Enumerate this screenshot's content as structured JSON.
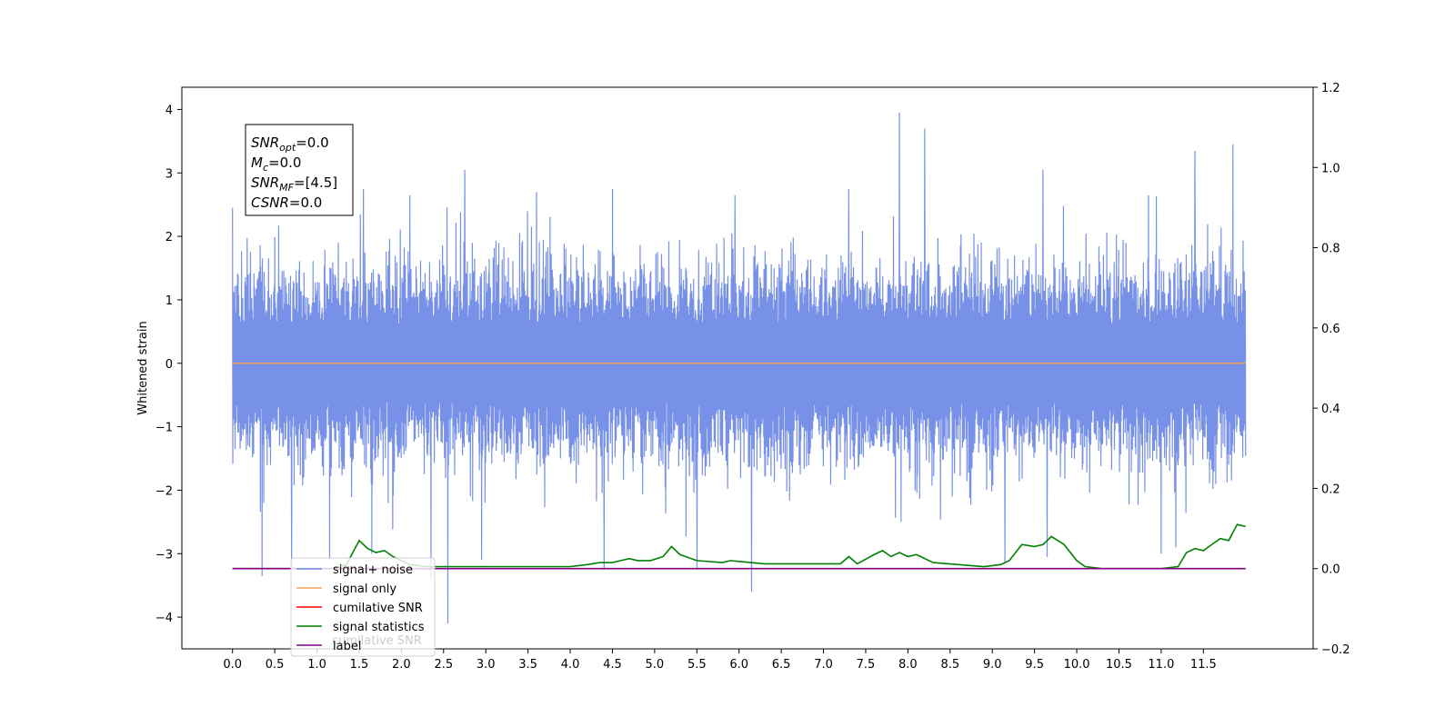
{
  "chart_data": {
    "type": "line",
    "ylabel": "Whitened strain",
    "xlim": [
      -0.6,
      12.8
    ],
    "ylim": [
      -4.5,
      4.35
    ],
    "y2lim": [
      -0.2,
      1.2
    ],
    "xticks": [
      0.0,
      0.5,
      1.0,
      1.5,
      2.0,
      2.5,
      3.0,
      3.5,
      4.0,
      4.5,
      5.0,
      5.5,
      6.0,
      6.5,
      7.0,
      7.5,
      8.0,
      8.5,
      9.0,
      9.5,
      10.0,
      10.5,
      11.0,
      11.5
    ],
    "xtick_labels": [
      "0.0",
      "0.5",
      "1.0",
      "1.5",
      "2.0",
      "2.5",
      "3.0",
      "3.5",
      "4.0",
      "4.5",
      "5.0",
      "5.5",
      "6.0",
      "6.5",
      "7.0",
      "7.5",
      "8.0",
      "8.5",
      "9.0",
      "9.5",
      "10.0",
      "10.5",
      "11.0",
      "11.5"
    ],
    "yticks": [
      -4,
      -3,
      -2,
      -1,
      0,
      1,
      2,
      3,
      4
    ],
    "ytick_labels": [
      "−4",
      "−3",
      "−2",
      "−1",
      "0",
      "1",
      "2",
      "3",
      "4"
    ],
    "y2ticks": [
      -0.2,
      0.0,
      0.2,
      0.4,
      0.6,
      0.8,
      1.0,
      1.2
    ],
    "y2tick_labels": [
      "−0.2",
      "0.0",
      "0.2",
      "0.4",
      "0.6",
      "0.8",
      "1.0",
      "1.2"
    ],
    "series": [
      {
        "name": "signal+ noise",
        "axis": "left",
        "color": "#6b87e6",
        "x_range": [
          0.0,
          12.0
        ],
        "envelope_typical": [
          -1.8,
          1.8
        ],
        "spikes": [
          {
            "x": 0.0,
            "y": 2.45
          },
          {
            "x": 0.35,
            "y": -3.35
          },
          {
            "x": 0.7,
            "y": -3.2
          },
          {
            "x": 1.15,
            "y": -3.1
          },
          {
            "x": 1.55,
            "y": 2.75
          },
          {
            "x": 1.65,
            "y": -3.0
          },
          {
            "x": 2.1,
            "y": 2.65
          },
          {
            "x": 2.35,
            "y": -3.4
          },
          {
            "x": 2.55,
            "y": -4.1
          },
          {
            "x": 2.75,
            "y": 3.05
          },
          {
            "x": 2.95,
            "y": -3.1
          },
          {
            "x": 3.6,
            "y": 2.7
          },
          {
            "x": 4.4,
            "y": -3.25
          },
          {
            "x": 4.5,
            "y": 2.75
          },
          {
            "x": 5.5,
            "y": -3.25
          },
          {
            "x": 5.95,
            "y": 2.65
          },
          {
            "x": 6.15,
            "y": -3.6
          },
          {
            "x": 7.3,
            "y": 2.75
          },
          {
            "x": 7.9,
            "y": 3.95
          },
          {
            "x": 8.2,
            "y": 3.7
          },
          {
            "x": 9.15,
            "y": -3.15
          },
          {
            "x": 9.6,
            "y": 3.05
          },
          {
            "x": 9.65,
            "y": -3.05
          },
          {
            "x": 10.85,
            "y": 2.65
          },
          {
            "x": 11.0,
            "y": -3.0
          },
          {
            "x": 11.4,
            "y": 3.35
          },
          {
            "x": 11.85,
            "y": 3.45
          }
        ]
      },
      {
        "name": "signal only",
        "axis": "left",
        "color": "#f5a05a",
        "x": [
          0.0,
          12.0
        ],
        "y": [
          0.0,
          0.0
        ]
      },
      {
        "name": "cumilative SNR",
        "axis": "right",
        "color": "#ff0000",
        "x": [],
        "y": []
      },
      {
        "name": "signal statistics",
        "axis": "right",
        "color": "#008000",
        "x": [
          0.0,
          0.5,
          1.0,
          1.2,
          1.35,
          1.5,
          1.6,
          1.7,
          1.8,
          1.9,
          2.0,
          2.1,
          2.3,
          2.5,
          3.0,
          3.5,
          4.0,
          4.2,
          4.35,
          4.5,
          4.6,
          4.7,
          4.8,
          4.95,
          5.1,
          5.2,
          5.3,
          5.5,
          5.8,
          5.9,
          6.0,
          6.3,
          6.6,
          6.9,
          7.2,
          7.3,
          7.4,
          7.6,
          7.7,
          7.8,
          7.9,
          8.0,
          8.1,
          8.3,
          8.6,
          8.9,
          9.1,
          9.2,
          9.35,
          9.5,
          9.6,
          9.7,
          9.85,
          10.0,
          10.1,
          10.3,
          10.8,
          11.0,
          11.2,
          11.3,
          11.4,
          11.5,
          11.6,
          11.7,
          11.8,
          11.9,
          12.0
        ],
        "y": [
          0.0,
          0.0,
          0.0,
          0.0,
          0.01,
          0.07,
          0.05,
          0.04,
          0.045,
          0.03,
          0.02,
          0.01,
          0.005,
          0.005,
          0.005,
          0.005,
          0.005,
          0.01,
          0.015,
          0.015,
          0.02,
          0.025,
          0.02,
          0.02,
          0.03,
          0.055,
          0.035,
          0.02,
          0.015,
          0.02,
          0.018,
          0.012,
          0.012,
          0.012,
          0.012,
          0.03,
          0.012,
          0.035,
          0.045,
          0.03,
          0.04,
          0.03,
          0.035,
          0.015,
          0.01,
          0.005,
          0.01,
          0.02,
          0.06,
          0.055,
          0.06,
          0.08,
          0.06,
          0.02,
          0.005,
          0.0,
          0.0,
          0.0,
          0.005,
          0.04,
          0.05,
          0.045,
          0.06,
          0.075,
          0.07,
          0.11,
          0.105
        ]
      },
      {
        "name": "label",
        "axis": "right",
        "color": "#800080",
        "x": [
          0.0,
          12.0
        ],
        "y": [
          0.0,
          0.0
        ]
      }
    ],
    "legend": {
      "placement": "lower-left",
      "entries": [
        "signal+ noise",
        "signal only",
        "cumilative SNR",
        "signal statistics",
        "label"
      ],
      "ghost_text": "cumilative SNR"
    },
    "annotation": {
      "lines": [
        {
          "base": "SNR",
          "sub": "opt",
          "value": "=0.0"
        },
        {
          "base": "M",
          "sub": "c",
          "value": "=0.0"
        },
        {
          "base": "SNR",
          "sub": "MF",
          "value": "=[4.5]"
        },
        {
          "base": "CSNR",
          "sub": "",
          "value": "=0.0"
        }
      ]
    }
  }
}
